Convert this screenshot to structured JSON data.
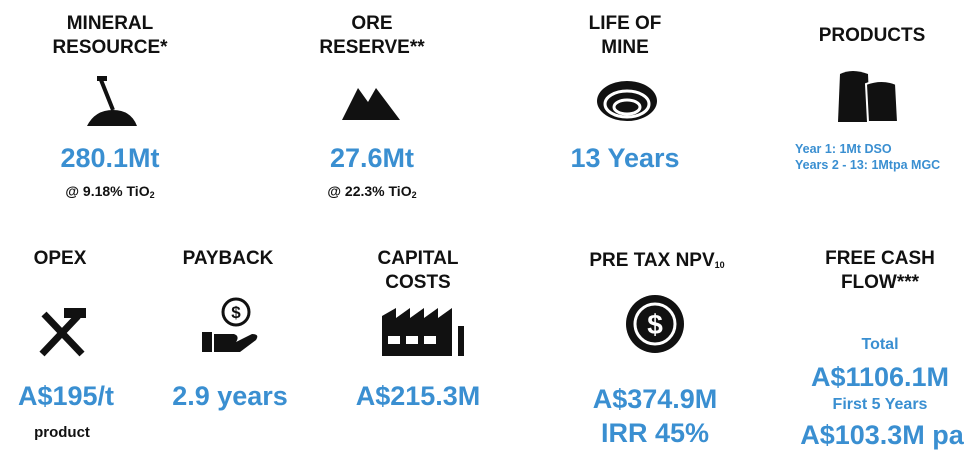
{
  "tiles": [
    {
      "title": [
        "MINERAL",
        "RESOURCE*"
      ],
      "value": "280.1Mt",
      "note": "@ 9.18% TiO",
      "note_sub": "2"
    },
    {
      "title": [
        "ORE",
        "RESERVE**"
      ],
      "value": "27.6Mt",
      "note": "@ 22.3% TiO",
      "note_sub": "2"
    },
    {
      "title": [
        "LIFE OF",
        "MINE"
      ],
      "value": "13 Years"
    },
    {
      "title": [
        "PRODUCTS"
      ],
      "lines": [
        "Year 1: 1Mt DSO",
        "Years 2 - 13: 1Mtpa MGC"
      ]
    },
    {
      "title": [
        "OPEX"
      ],
      "value": "A$195/t",
      "note": "product"
    },
    {
      "title": [
        "PAYBACK"
      ],
      "value": "2.9 years"
    },
    {
      "title": [
        "CAPITAL",
        "COSTS"
      ],
      "value": "A$215.3M"
    },
    {
      "title": [
        "PRE TAX NPV"
      ],
      "title_sub": "10",
      "value": "A$374.9M",
      "value2": "IRR 45%"
    },
    {
      "title": [
        "FREE CASH",
        "FLOW***"
      ],
      "label1": "Total",
      "value": "A$1106.1M",
      "label2": "First 5 Years",
      "value2": "A$103.3M pa"
    }
  ]
}
